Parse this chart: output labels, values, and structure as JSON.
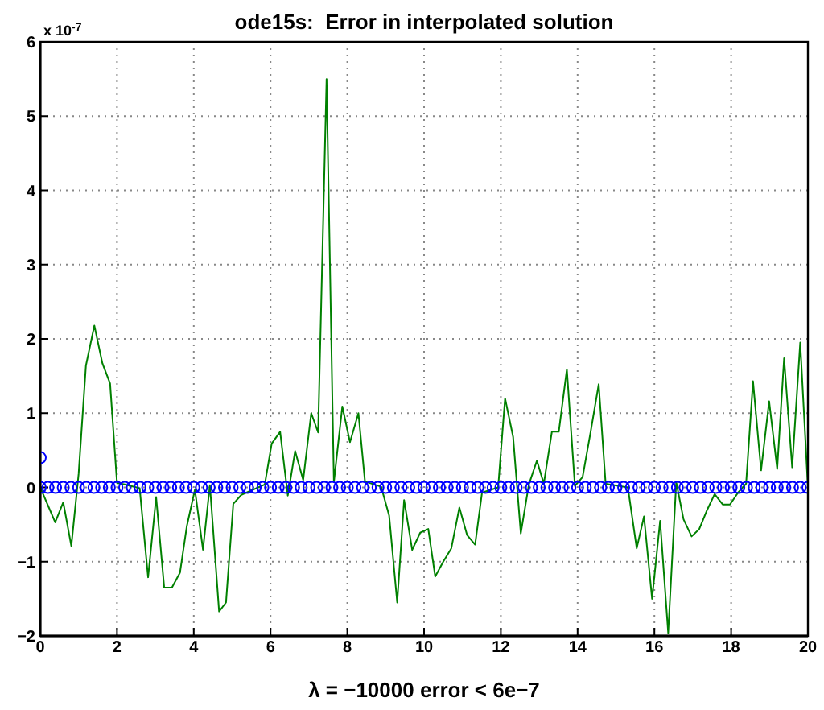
{
  "chart_data": {
    "type": "line",
    "title": "ode15s:  Error in interpolated solution",
    "xlabel": "λ  = −10000     error < 6e−7",
    "annotations": [
      "x 10$^{-7}$"
    ],
    "xlim": [
      0,
      20
    ],
    "xticks": [
      0,
      2,
      4,
      6,
      8,
      10,
      12,
      14,
      16,
      18,
      20
    ],
    "ylim": [
      -2,
      6
    ],
    "yticks": [
      -2,
      -1,
      0,
      1,
      2,
      3,
      4,
      5,
      6
    ],
    "grid": true,
    "series": [
      {
        "color": "#008000",
        "marker": "none",
        "x": [
          0,
          0.39,
          0.6,
          0.81,
          1.0,
          1.19,
          1.41,
          1.62,
          1.82,
          2.0,
          2.2,
          2.59,
          2.81,
          3.02,
          3.23,
          3.43,
          3.64,
          3.82,
          4.03,
          4.24,
          4.42,
          4.66,
          4.84,
          5.03,
          5.24,
          5.85,
          6.03,
          6.25,
          6.45,
          6.64,
          6.85,
          7.06,
          7.24,
          7.46,
          7.65,
          7.87,
          8.07,
          8.29,
          8.46,
          8.88,
          9.09,
          9.3,
          9.48,
          9.69,
          9.9,
          10.11,
          10.29,
          10.5,
          10.71,
          10.92,
          11.12,
          11.33,
          11.51,
          11.93,
          12.11,
          12.32,
          12.52,
          12.73,
          12.94,
          13.12,
          13.33,
          13.51,
          13.72,
          13.93,
          14.13,
          14.34,
          14.55,
          14.73,
          15.31,
          15.54,
          15.73,
          15.94,
          16.15,
          16.36,
          16.57,
          16.76,
          16.97,
          17.17,
          17.36,
          17.57,
          17.78,
          17.97,
          18.18,
          18.39,
          18.57,
          18.78,
          18.99,
          19.2,
          19.38,
          19.59,
          19.8,
          20.0
        ],
        "values": [
          0,
          -0.47,
          -0.2,
          -0.79,
          0.18,
          1.64,
          2.18,
          1.67,
          1.4,
          0.06,
          0.04,
          -0.01,
          -1.21,
          -0.13,
          -1.35,
          -1.35,
          -1.15,
          -0.52,
          -0.03,
          -0.84,
          0.03,
          -1.67,
          -1.55,
          -0.22,
          -0.1,
          0.04,
          0.59,
          0.75,
          -0.11,
          0.49,
          0.1,
          1.0,
          0.74,
          5.5,
          0.07,
          1.09,
          0.61,
          1.0,
          0.08,
          0.01,
          -0.38,
          -1.55,
          -0.17,
          -0.84,
          -0.61,
          -0.56,
          -1.2,
          -1.0,
          -0.82,
          -0.27,
          -0.64,
          -0.77,
          -0.07,
          0,
          1.2,
          0.68,
          -0.62,
          0.04,
          0.36,
          0.05,
          0.75,
          0.75,
          1.59,
          0.02,
          0.14,
          0.75,
          1.39,
          0.05,
          0,
          -0.82,
          -0.39,
          -1.5,
          -0.45,
          -1.96,
          0.07,
          -0.43,
          -0.66,
          -0.56,
          -0.32,
          -0.09,
          -0.23,
          -0.23,
          -0.07,
          0.05,
          1.43,
          0.23,
          1.16,
          0.25,
          1.74,
          0.27,
          1.95,
          0
        ]
      },
      {
        "type": "scatter",
        "color": "#0000ff",
        "marker": "circle",
        "x": [
          0,
          0,
          0.2,
          0.4,
          0.6,
          0.8,
          1,
          1.2,
          1.4,
          1.6,
          1.8,
          2,
          2.2,
          2.4,
          2.6,
          2.8,
          3,
          3.2,
          3.4,
          3.6,
          3.8,
          4,
          4.2,
          4.4,
          4.6,
          4.8,
          5,
          5.2,
          5.4,
          5.6,
          5.8,
          6,
          6.2,
          6.4,
          6.6,
          6.8,
          7,
          7.2,
          7.4,
          7.6,
          7.8,
          8,
          8.2,
          8.4,
          8.6,
          8.8,
          9,
          9.2,
          9.4,
          9.6,
          9.8,
          10,
          10.2,
          10.4,
          10.6,
          10.8,
          11,
          11.2,
          11.4,
          11.6,
          11.8,
          12,
          12.2,
          12.4,
          12.6,
          12.8,
          13,
          13.2,
          13.4,
          13.6,
          13.8,
          14,
          14.2,
          14.4,
          14.6,
          14.8,
          15,
          15.2,
          15.4,
          15.6,
          15.8,
          16,
          16.2,
          16.4,
          16.6,
          16.8,
          17,
          17.2,
          17.4,
          17.6,
          17.8,
          18,
          18.2,
          18.4,
          18.6,
          18.8,
          19,
          19.2,
          19.4,
          19.6,
          19.8,
          20
        ],
        "values": [
          0.4,
          0,
          0,
          0,
          0,
          0,
          0,
          0,
          0,
          0,
          0,
          0,
          0,
          0,
          0,
          0,
          0,
          0,
          0,
          0,
          0,
          0,
          0,
          0,
          0,
          0,
          0,
          0,
          0,
          0,
          0,
          0,
          0,
          0,
          0,
          0,
          0,
          0,
          0,
          0,
          0,
          0,
          0,
          0,
          0,
          0,
          0,
          0,
          0,
          0,
          0,
          0,
          0,
          0,
          0,
          0,
          0,
          0,
          0,
          0,
          0,
          0,
          0,
          0,
          0,
          0,
          0,
          0,
          0,
          0,
          0,
          0,
          0,
          0,
          0,
          0,
          0,
          0,
          0,
          0,
          0,
          0,
          0,
          0,
          0,
          0,
          0,
          0,
          0,
          0,
          0,
          0,
          0,
          0,
          0,
          0,
          0,
          0,
          0,
          0,
          0,
          0
        ]
      }
    ]
  }
}
